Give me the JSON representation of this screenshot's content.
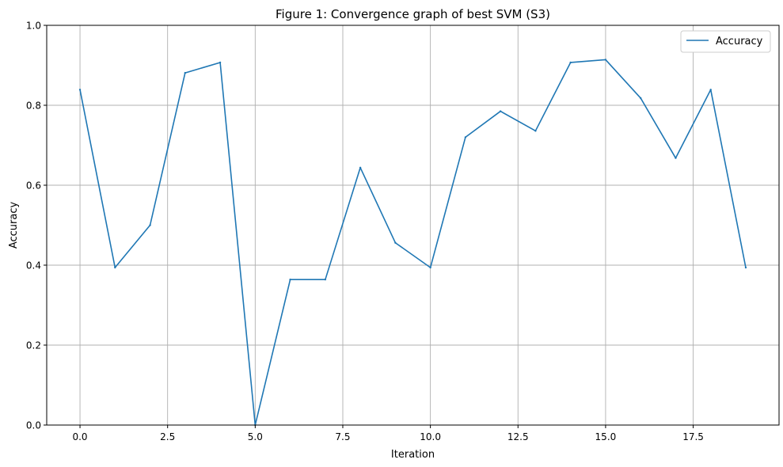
{
  "chart_data": {
    "type": "line",
    "title": "Figure 1: Convergence graph of best SVM (S3)",
    "xlabel": "Iteration",
    "ylabel": "Accuracy",
    "xlim": [
      -0.95,
      19.95
    ],
    "ylim": [
      0,
      1
    ],
    "xticks": [
      0,
      2.5,
      5,
      7.5,
      10,
      12.5,
      15,
      17.5
    ],
    "xtick_labels": [
      "0.0",
      "2.5",
      "5.0",
      "7.5",
      "10.0",
      "12.5",
      "15.0",
      "17.5"
    ],
    "yticks": [
      0,
      0.2,
      0.4,
      0.6,
      0.8,
      1.0
    ],
    "ytick_labels": [
      "0.0",
      "0.2",
      "0.4",
      "0.6",
      "0.8",
      "1.0"
    ],
    "grid": true,
    "legend_position": "top-right",
    "series": [
      {
        "name": "Accuracy",
        "color": "#1f77b4",
        "x": [
          0,
          1,
          2,
          3,
          4,
          5,
          6,
          7,
          8,
          9,
          10,
          11,
          12,
          13,
          14,
          15,
          16,
          17,
          18,
          19
        ],
        "values": [
          0.839,
          0.394,
          0.5,
          0.881,
          0.907,
          0.0,
          0.364,
          0.364,
          0.644,
          0.456,
          0.394,
          0.72,
          0.785,
          0.736,
          0.907,
          0.914,
          0.818,
          0.668,
          0.839,
          0.394
        ]
      }
    ]
  }
}
